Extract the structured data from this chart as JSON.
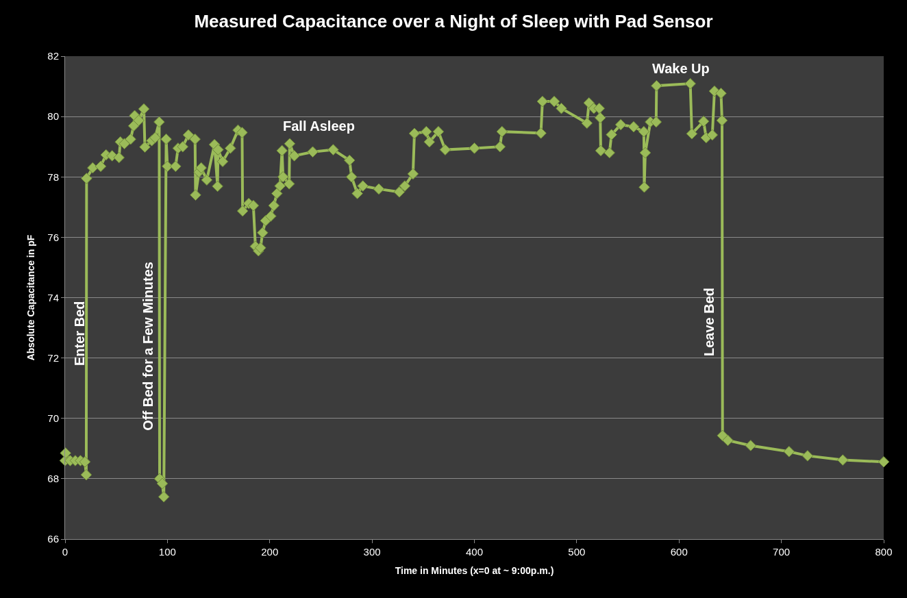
{
  "chart_data": {
    "type": "line",
    "title": "Measured Capacitance over a Night of Sleep with Pad Sensor",
    "xlabel": "Time in Minutes (x=0 at ~ 9:00p.m.)",
    "ylabel": "Absolute Capacitance in pF",
    "x": [
      0,
      0.5,
      5,
      10,
      15,
      19.4,
      20.7,
      21,
      27,
      34.8,
      40,
      46,
      52.7,
      54,
      58,
      64,
      67,
      68,
      72,
      77,
      78,
      84.7,
      88,
      92,
      92.4,
      95,
      96.5,
      98.8,
      100,
      108,
      110.4,
      115,
      120.5,
      127,
      127.5,
      130.9,
      133,
      138.5,
      146,
      149,
      149.5,
      154,
      161.5,
      169,
      173,
      173.5,
      179.5,
      184,
      186,
      189,
      191,
      193,
      196,
      201,
      204,
      207,
      210,
      212,
      213,
      219,
      219.5,
      224,
      242,
      262,
      278,
      280,
      285.6,
      291,
      306.6,
      326.6,
      332,
      340,
      341.4,
      353,
      356,
      364.8,
      371.5,
      400,
      425,
      427,
      465,
      466.5,
      478,
      485,
      510,
      512,
      516.7,
      522,
      523,
      523.5,
      532,
      534,
      543,
      555.6,
      565.6,
      566,
      567,
      572,
      577.6,
      578,
      611,
      612.5,
      624,
      626.5,
      632.5,
      634.6,
      641,
      642,
      642.5,
      647.7,
      670,
      707.5,
      725.6,
      760,
      800
    ],
    "series": [
      {
        "color": "#9bbb59",
        "values": [
          68.6,
          68.85,
          68.6,
          68.6,
          68.6,
          68.56,
          68.13,
          77.95,
          78.3,
          78.35,
          78.73,
          78.7,
          78.64,
          79.16,
          79.1,
          79.25,
          79.69,
          80.03,
          79.87,
          80.25,
          78.99,
          79.2,
          79.3,
          79.82,
          68.0,
          67.84,
          67.4,
          79.25,
          78.35,
          78.35,
          78.95,
          79.0,
          79.39,
          79.25,
          77.4,
          78.16,
          78.3,
          77.9,
          79.07,
          77.69,
          78.9,
          78.51,
          78.95,
          79.55,
          79.47,
          76.87,
          77.12,
          77.05,
          75.7,
          75.55,
          75.65,
          76.15,
          76.55,
          76.7,
          77.05,
          77.45,
          77.7,
          78.87,
          78.0,
          77.77,
          79.1,
          78.7,
          78.83,
          78.9,
          78.55,
          78.0,
          77.45,
          77.7,
          77.6,
          77.5,
          77.7,
          78.1,
          79.44,
          79.5,
          79.16,
          79.5,
          78.9,
          78.95,
          79.0,
          79.5,
          79.45,
          80.5,
          80.5,
          80.27,
          79.78,
          80.45,
          80.27,
          80.27,
          79.96,
          78.87,
          78.8,
          79.4,
          79.73,
          79.66,
          79.5,
          77.66,
          78.8,
          79.82,
          79.82,
          81.02,
          81.09,
          79.43,
          79.84,
          79.3,
          79.39,
          80.84,
          80.77,
          79.87,
          69.43,
          69.27,
          69.1,
          68.9,
          68.76,
          68.62,
          68.56
        ]
      }
    ],
    "xlim": [
      0,
      800
    ],
    "xticks": [
      0,
      100,
      200,
      300,
      400,
      500,
      600,
      700,
      800
    ],
    "ylim": [
      66,
      82
    ],
    "yticks": [
      66,
      68,
      70,
      72,
      74,
      76,
      78,
      80,
      82
    ],
    "grid": "y",
    "marker": "diamond",
    "annotations": [
      "Enter Bed",
      "Off Bed for a Few Minutes",
      "Fall Asleep",
      "Wake Up",
      "Leave Bed"
    ]
  }
}
